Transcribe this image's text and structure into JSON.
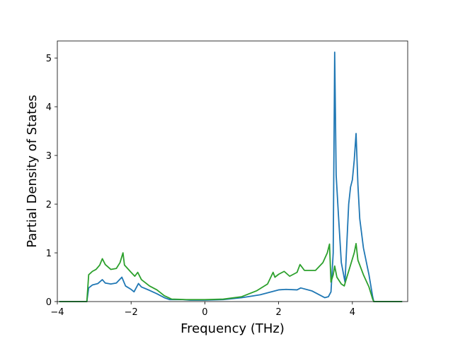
{
  "chart_data": {
    "type": "line",
    "title": "",
    "xlabel": "Frequency (THz)",
    "ylabel": "Partial Density of States",
    "xlim": [
      -4.0,
      5.5
    ],
    "ylim": [
      0,
      5.35
    ],
    "xticks": [
      -4,
      -2,
      0,
      2,
      4
    ],
    "xtick_labels": [
      "−4",
      "−2",
      "0",
      "2",
      "4"
    ],
    "yticks": [
      0,
      1,
      2,
      3,
      4,
      5
    ],
    "ytick_labels": [
      "0",
      "1",
      "2",
      "3",
      "4",
      "5"
    ],
    "grid": false,
    "legend": "none",
    "series": [
      {
        "color": "#1f77b4",
        "points": [
          [
            -3.95,
            0
          ],
          [
            -3.2,
            0
          ],
          [
            -3.15,
            0.28
          ],
          [
            -3.05,
            0.34
          ],
          [
            -2.9,
            0.37
          ],
          [
            -2.78,
            0.45
          ],
          [
            -2.7,
            0.38
          ],
          [
            -2.55,
            0.36
          ],
          [
            -2.4,
            0.38
          ],
          [
            -2.25,
            0.5
          ],
          [
            -2.15,
            0.32
          ],
          [
            -2.0,
            0.25
          ],
          [
            -1.92,
            0.2
          ],
          [
            -1.8,
            0.37
          ],
          [
            -1.72,
            0.3
          ],
          [
            -1.5,
            0.23
          ],
          [
            -1.3,
            0.16
          ],
          [
            -1.1,
            0.08
          ],
          [
            -0.95,
            0.04
          ],
          [
            -0.6,
            0.04
          ],
          [
            -0.4,
            0.03
          ],
          [
            0,
            0.03
          ],
          [
            0.5,
            0.04
          ],
          [
            1.0,
            0.08
          ],
          [
            1.5,
            0.14
          ],
          [
            1.8,
            0.2
          ],
          [
            2.0,
            0.24
          ],
          [
            2.2,
            0.25
          ],
          [
            2.5,
            0.24
          ],
          [
            2.6,
            0.28
          ],
          [
            2.9,
            0.22
          ],
          [
            3.1,
            0.14
          ],
          [
            3.25,
            0.08
          ],
          [
            3.35,
            0.1
          ],
          [
            3.42,
            0.2
          ],
          [
            3.48,
            1.0
          ],
          [
            3.52,
            5.12
          ],
          [
            3.56,
            2.6
          ],
          [
            3.62,
            1.8
          ],
          [
            3.7,
            0.8
          ],
          [
            3.8,
            0.4
          ],
          [
            3.85,
            1.2
          ],
          [
            3.9,
            2.0
          ],
          [
            3.95,
            2.35
          ],
          [
            4.0,
            2.5
          ],
          [
            4.05,
            2.9
          ],
          [
            4.1,
            3.45
          ],
          [
            4.15,
            2.4
          ],
          [
            4.2,
            1.7
          ],
          [
            4.3,
            1.1
          ],
          [
            4.45,
            0.55
          ],
          [
            4.55,
            0.1
          ],
          [
            4.58,
            0
          ],
          [
            5.35,
            0
          ]
        ]
      },
      {
        "color": "#2ca02c",
        "points": [
          [
            -3.95,
            0
          ],
          [
            -3.2,
            0
          ],
          [
            -3.15,
            0.55
          ],
          [
            -3.05,
            0.62
          ],
          [
            -2.95,
            0.66
          ],
          [
            -2.85,
            0.75
          ],
          [
            -2.78,
            0.88
          ],
          [
            -2.7,
            0.76
          ],
          [
            -2.55,
            0.66
          ],
          [
            -2.4,
            0.68
          ],
          [
            -2.3,
            0.8
          ],
          [
            -2.22,
            1.0
          ],
          [
            -2.18,
            0.75
          ],
          [
            -2.0,
            0.6
          ],
          [
            -1.9,
            0.52
          ],
          [
            -1.82,
            0.6
          ],
          [
            -1.72,
            0.45
          ],
          [
            -1.5,
            0.32
          ],
          [
            -1.3,
            0.24
          ],
          [
            -1.1,
            0.12
          ],
          [
            -0.9,
            0.05
          ],
          [
            -0.5,
            0.04
          ],
          [
            0,
            0.04
          ],
          [
            0.5,
            0.05
          ],
          [
            1.0,
            0.1
          ],
          [
            1.4,
            0.22
          ],
          [
            1.7,
            0.36
          ],
          [
            1.85,
            0.6
          ],
          [
            1.9,
            0.5
          ],
          [
            2.0,
            0.56
          ],
          [
            2.15,
            0.62
          ],
          [
            2.3,
            0.52
          ],
          [
            2.5,
            0.6
          ],
          [
            2.58,
            0.76
          ],
          [
            2.7,
            0.64
          ],
          [
            3.0,
            0.64
          ],
          [
            3.2,
            0.8
          ],
          [
            3.32,
            1.0
          ],
          [
            3.38,
            1.18
          ],
          [
            3.42,
            0.4
          ],
          [
            3.48,
            0.55
          ],
          [
            3.52,
            0.73
          ],
          [
            3.58,
            0.5
          ],
          [
            3.7,
            0.36
          ],
          [
            3.78,
            0.32
          ],
          [
            3.85,
            0.5
          ],
          [
            3.95,
            0.75
          ],
          [
            4.05,
            1.0
          ],
          [
            4.1,
            1.19
          ],
          [
            4.15,
            0.85
          ],
          [
            4.3,
            0.55
          ],
          [
            4.45,
            0.3
          ],
          [
            4.55,
            0.05
          ],
          [
            4.58,
            0
          ],
          [
            5.35,
            0
          ]
        ]
      }
    ]
  }
}
